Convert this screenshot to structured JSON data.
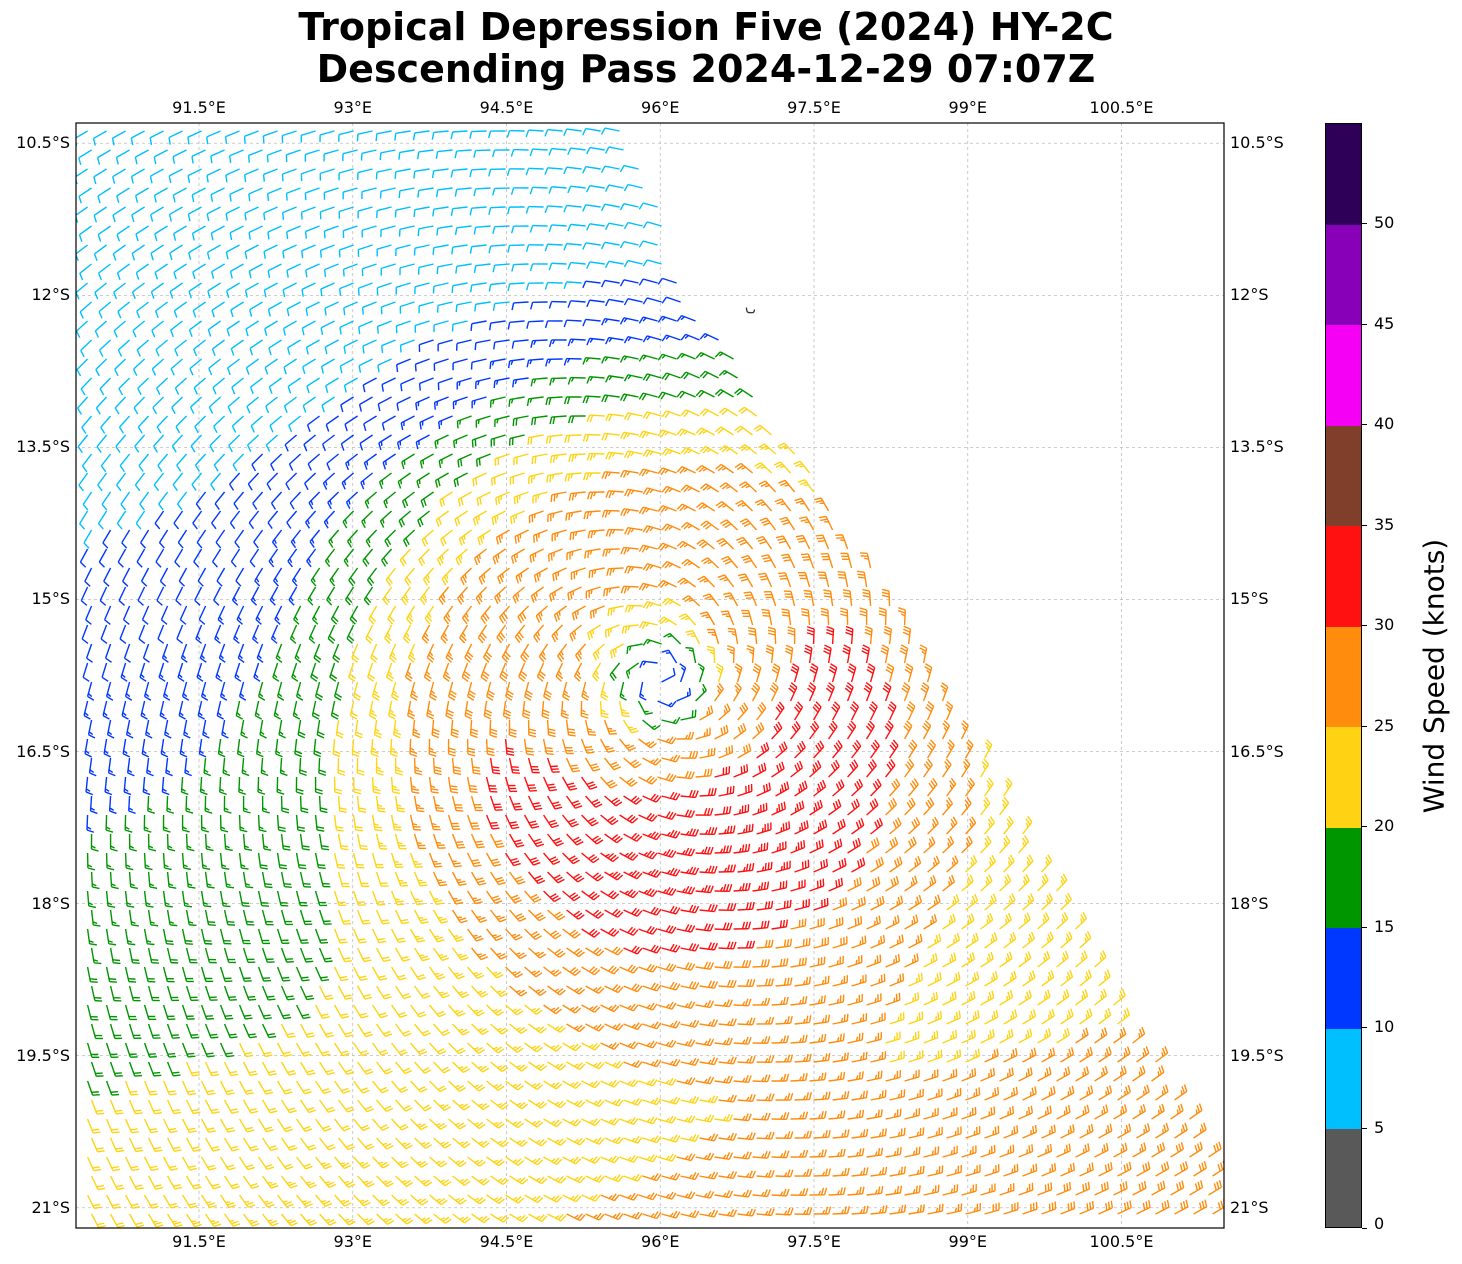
{
  "title_line1": "Tropical Depression Five (2024) HY-2C",
  "title_line2": "Descending Pass 2024-12-29 07:07Z",
  "map": {
    "lon_range": [
      90.3,
      101.5
    ],
    "lat_range": [
      -21.2,
      -10.3
    ],
    "lon_ticks": [
      91.5,
      93,
      94.5,
      96,
      97.5,
      99,
      100.5
    ],
    "lon_tick_labels": [
      "91.5°E",
      "93°E",
      "94.5°E",
      "96°E",
      "97.5°E",
      "99°E",
      "100.5°E"
    ],
    "lat_ticks": [
      -10.5,
      -12,
      -13.5,
      -15,
      -16.5,
      -18,
      -19.5,
      -21
    ],
    "lat_tick_labels": [
      "10.5°S",
      "12°S",
      "13.5°S",
      "15°S",
      "16.5°S",
      "18°S",
      "19.5°S",
      "21°S"
    ],
    "grid": "dashed",
    "storm_center": {
      "lon": 96.0,
      "lat": -15.8
    },
    "land_feature": {
      "lon": 96.88,
      "lat": -12.15
    },
    "swath_polygon": [
      [
        90.3,
        -10.3
      ],
      [
        95.7,
        -10.3
      ],
      [
        96.3,
        -12.0
      ],
      [
        97.3,
        -13.5
      ],
      [
        98.6,
        -15.5
      ],
      [
        99.4,
        -17.0
      ],
      [
        100.4,
        -18.8
      ],
      [
        101.3,
        -20.3
      ],
      [
        101.9,
        -21.2
      ],
      [
        90.3,
        -21.2
      ]
    ]
  },
  "colorbar": {
    "title": "Wind Speed (knots)",
    "range": [
      0,
      55
    ],
    "bins": [
      {
        "from": 0,
        "to": 5,
        "color": "#595959"
      },
      {
        "from": 5,
        "to": 10,
        "color": "#00bfff"
      },
      {
        "from": 10,
        "to": 15,
        "color": "#0038ff"
      },
      {
        "from": 15,
        "to": 20,
        "color": "#009600"
      },
      {
        "from": 20,
        "to": 25,
        "color": "#ffd314"
      },
      {
        "from": 25,
        "to": 30,
        "color": "#ff8c0d"
      },
      {
        "from": 30,
        "to": 35,
        "color": "#ff1111"
      },
      {
        "from": 35,
        "to": 40,
        "color": "#7f3f2a"
      },
      {
        "from": 40,
        "to": 45,
        "color": "#f500f5"
      },
      {
        "from": 45,
        "to": 50,
        "color": "#8800b8"
      },
      {
        "from": 50,
        "to": 55,
        "color": "#2e0058"
      }
    ],
    "ticks": [
      0,
      5,
      10,
      15,
      20,
      25,
      30,
      35,
      40,
      45,
      50
    ],
    "tick_labels": [
      "0",
      "5",
      "10",
      "15",
      "20",
      "25",
      "30",
      "35",
      "40",
      "45",
      "50"
    ]
  }
}
